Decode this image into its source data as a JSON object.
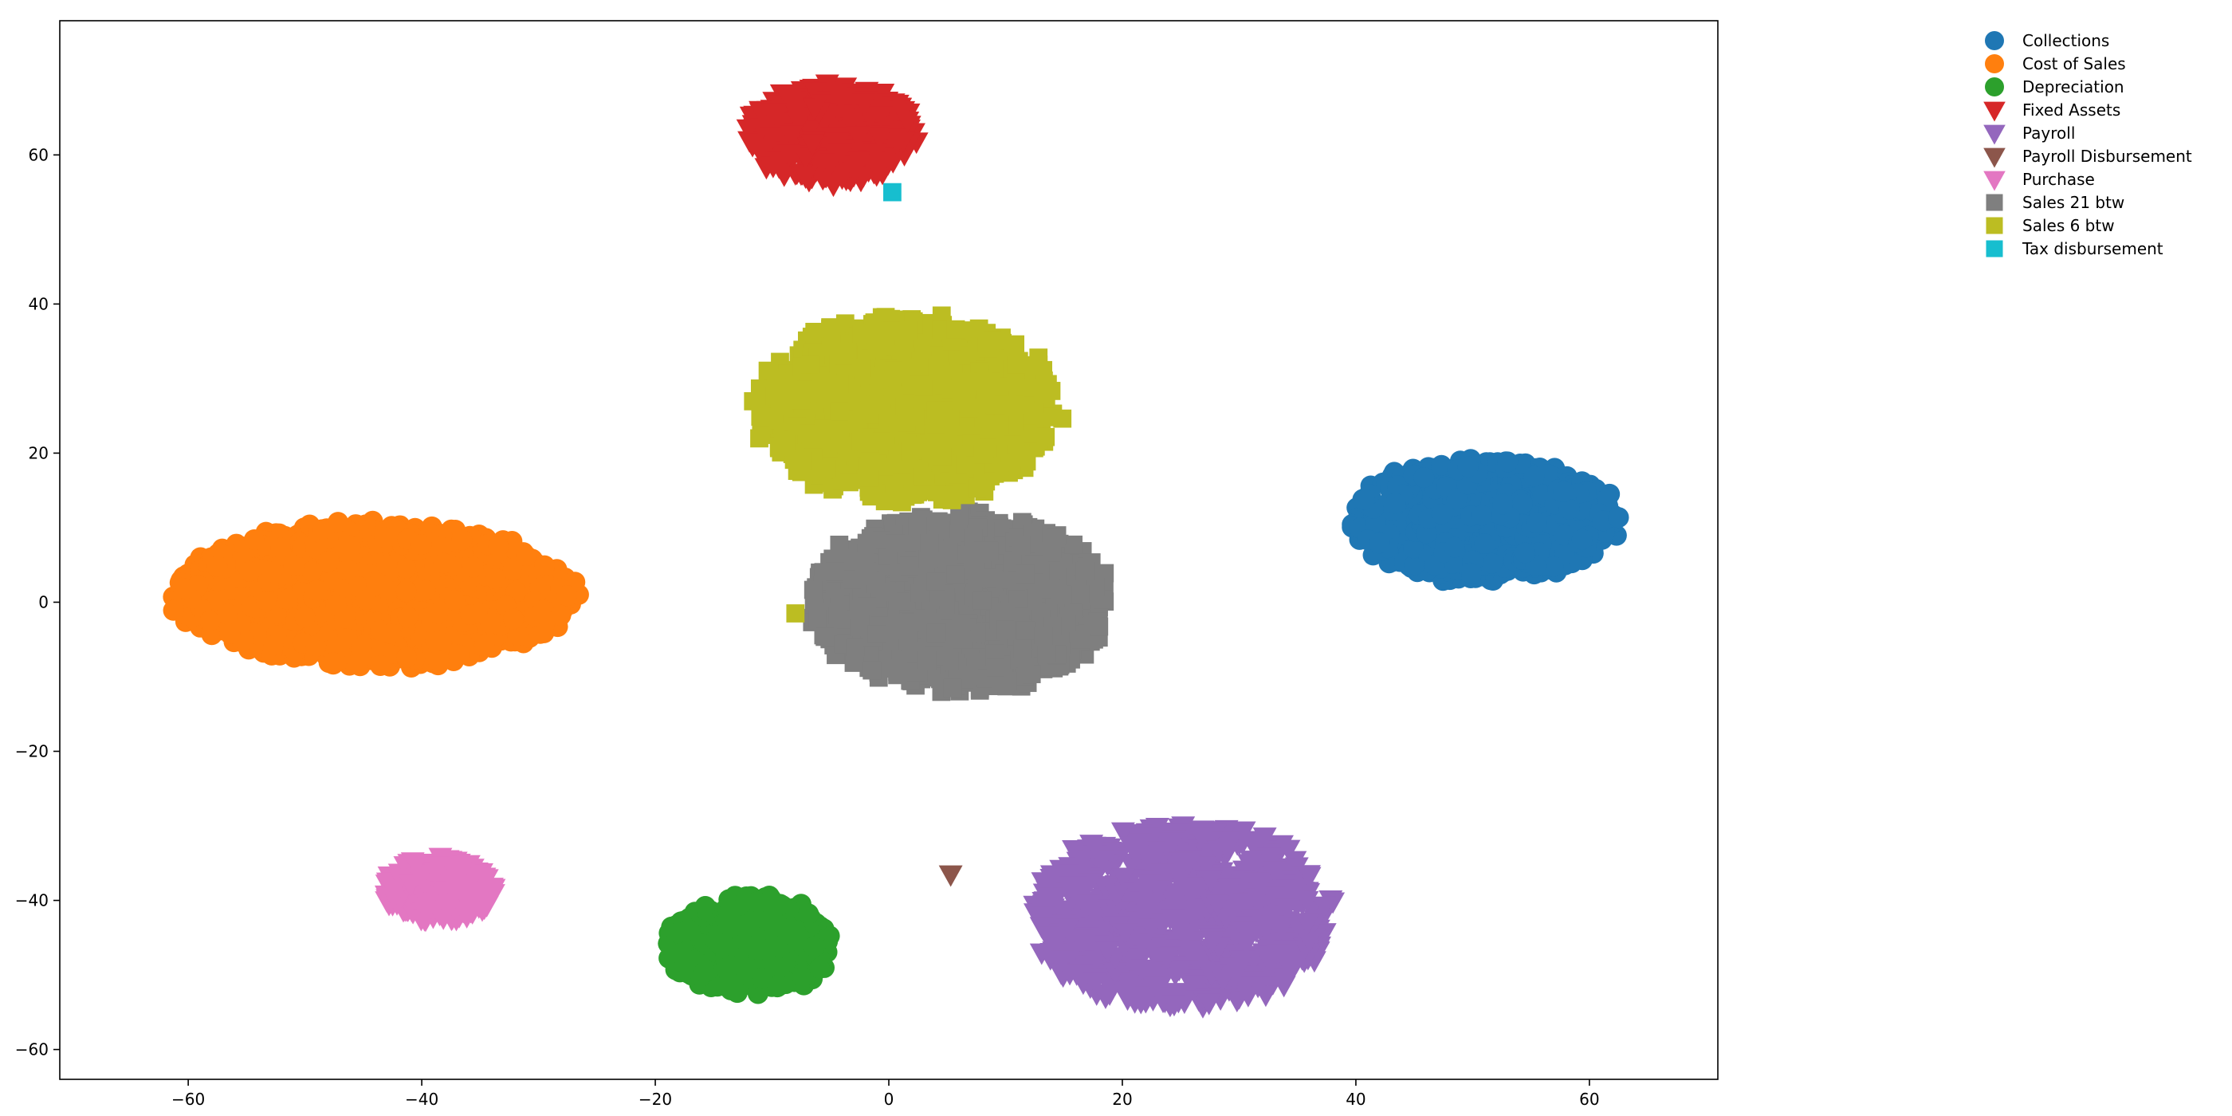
{
  "chart_data": {
    "type": "scatter",
    "title": "",
    "xlabel": "",
    "ylabel": "",
    "xlim": [
      -71,
      71
    ],
    "ylim": [
      -64,
      78
    ],
    "x_ticks": [
      -60,
      -40,
      -20,
      0,
      20,
      40,
      60
    ],
    "y_ticks": [
      -60,
      -40,
      -20,
      0,
      20,
      40,
      60
    ],
    "x_tick_labels": [
      "−60",
      "−40",
      "−20",
      "0",
      "20",
      "40",
      "60"
    ],
    "y_tick_labels": [
      "−60",
      "−40",
      "−20",
      "0",
      "20",
      "40",
      "60"
    ],
    "grid": false,
    "legend_position": "outside right, top",
    "series": [
      {
        "name": "Collections",
        "marker": "circle",
        "color": "#1f77b4",
        "cluster": {
          "center": [
            51,
            11
          ],
          "spread": [
            12,
            8.5
          ],
          "count": 900
        }
      },
      {
        "name": "Cost of Sales",
        "marker": "circle",
        "color": "#ff7f0e",
        "cluster": {
          "center": [
            -44,
            1
          ],
          "spread": [
            18,
            10
          ],
          "count": 1600
        }
      },
      {
        "name": "Depreciation",
        "marker": "circle",
        "color": "#2ca02c",
        "cluster": {
          "center": [
            -12,
            -46
          ],
          "spread": [
            7.5,
            7
          ],
          "count": 500
        }
      },
      {
        "name": "Fixed Assets",
        "marker": "triangle-down",
        "color": "#d62728",
        "cluster": {
          "center": [
            -5,
            63
          ],
          "spread": [
            7.5,
            7
          ],
          "count": 500
        }
      },
      {
        "name": "Payroll",
        "marker": "triangle-down",
        "color": "#9467bd",
        "cluster": {
          "center": [
            25,
            -42
          ],
          "spread": [
            13.5,
            13
          ],
          "count": 900
        }
      },
      {
        "name": "Payroll Disbursement",
        "marker": "triangle-down",
        "color": "#8c564b",
        "points": [
          [
            5.3,
            -36.5
          ]
        ]
      },
      {
        "name": "Purchase",
        "marker": "triangle-down",
        "color": "#e377c2",
        "cluster": {
          "center": [
            -38.5,
            -38.5
          ],
          "spread": [
            5,
            4.5
          ],
          "count": 350
        }
      },
      {
        "name": "Sales 21 btw",
        "marker": "square",
        "color": "#7f7f7f",
        "cluster": {
          "center": [
            6,
            0
          ],
          "spread": [
            13.5,
            12.5
          ],
          "count": 1200
        }
      },
      {
        "name": "Sales 6 btw",
        "marker": "square",
        "color": "#bcbd22",
        "cluster": {
          "center": [
            1.5,
            26
          ],
          "spread": [
            13.5,
            13
          ],
          "count": 1200
        },
        "points": [
          [
            -8,
            -1.5
          ]
        ]
      },
      {
        "name": "Tax disbursement",
        "marker": "square",
        "color": "#17becf",
        "points": [
          [
            0.3,
            55
          ]
        ]
      }
    ]
  }
}
